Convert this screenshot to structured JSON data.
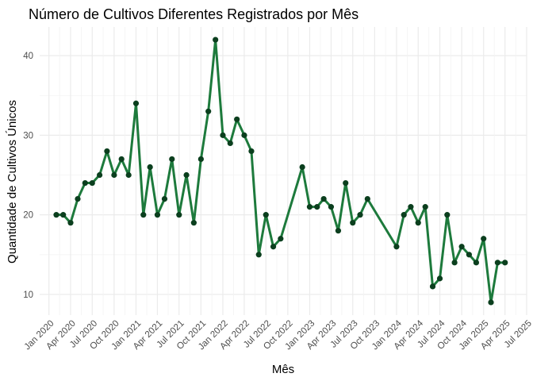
{
  "chart_data": {
    "type": "line",
    "title": "Número de Cultivos Diferentes Registrados por Mês",
    "xlabel": "Mês",
    "ylabel": "Quantidade de Cultivos Únicos",
    "x_axis": "date",
    "xlim": [
      "2019-11-23",
      "2025-07-01"
    ],
    "ylim": [
      7.4,
      43.6
    ],
    "grid": true,
    "legend": "none",
    "x_ticks": [
      {
        "date": "2020-01-01",
        "label": "Jan 2020"
      },
      {
        "date": "2020-04-01",
        "label": "Apr 2020"
      },
      {
        "date": "2020-07-01",
        "label": "Jul 2020"
      },
      {
        "date": "2020-10-01",
        "label": "Oct 2020"
      },
      {
        "date": "2021-01-01",
        "label": "Jan 2021"
      },
      {
        "date": "2021-04-01",
        "label": "Apr 2021"
      },
      {
        "date": "2021-07-01",
        "label": "Jul 2021"
      },
      {
        "date": "2021-10-01",
        "label": "Oct 2021"
      },
      {
        "date": "2022-01-01",
        "label": "Jan 2022"
      },
      {
        "date": "2022-04-01",
        "label": "Apr 2022"
      },
      {
        "date": "2022-07-01",
        "label": "Jul 2022"
      },
      {
        "date": "2022-10-01",
        "label": "Oct 2022"
      },
      {
        "date": "2023-01-01",
        "label": "Jan 2023"
      },
      {
        "date": "2023-04-01",
        "label": "Apr 2023"
      },
      {
        "date": "2023-07-01",
        "label": "Jul 2023"
      },
      {
        "date": "2023-10-01",
        "label": "Oct 2023"
      },
      {
        "date": "2024-01-01",
        "label": "Jan 2024"
      },
      {
        "date": "2024-04-01",
        "label": "Apr 2024"
      },
      {
        "date": "2024-07-01",
        "label": "Jul 2024"
      },
      {
        "date": "2024-10-01",
        "label": "Oct 2024"
      },
      {
        "date": "2025-01-01",
        "label": "Jan 2025"
      },
      {
        "date": "2025-04-01",
        "label": "Apr 2025"
      },
      {
        "date": "2025-07-01",
        "label": "Jul 2025"
      }
    ],
    "y_ticks": [
      10,
      20,
      30,
      40
    ],
    "colors": {
      "line": "#1d7a3c",
      "point": "#0b3f1e",
      "grid_major": "#ebebeb",
      "grid_minor": "#f3f3f3"
    },
    "series": [
      {
        "x": [
          "2020-02-01",
          "2020-03-01",
          "2020-04-01",
          "2020-05-01",
          "2020-06-01",
          "2020-07-01",
          "2020-08-01",
          "2020-09-01",
          "2020-10-01",
          "2020-11-01",
          "2020-12-01",
          "2021-01-01",
          "2021-02-01",
          "2021-03-01",
          "2021-04-01",
          "2021-05-01",
          "2021-06-01",
          "2021-07-01",
          "2021-08-01",
          "2021-09-01",
          "2021-10-01",
          "2021-11-01",
          "2021-12-01",
          "2022-01-01",
          "2022-02-01",
          "2022-03-01",
          "2022-04-01",
          "2022-05-01",
          "2022-06-01",
          "2022-07-01",
          "2022-08-01",
          "2022-09-01",
          "2022-12-01",
          "2023-01-01",
          "2023-02-01",
          "2023-03-01",
          "2023-04-01",
          "2023-05-01",
          "2023-06-01",
          "2023-07-01",
          "2023-08-01",
          "2023-09-01",
          "2024-01-01",
          "2024-02-01",
          "2024-03-01",
          "2024-04-01",
          "2024-05-01",
          "2024-06-01",
          "2024-07-01",
          "2024-08-01",
          "2024-09-01",
          "2024-10-01",
          "2024-11-01",
          "2024-12-01",
          "2025-01-01",
          "2025-02-01",
          "2025-03-01",
          "2025-04-01"
        ],
        "y": [
          20,
          20,
          19,
          22,
          24,
          24,
          25,
          28,
          25,
          27,
          25,
          34,
          20,
          26,
          20,
          22,
          27,
          20,
          25,
          19,
          27,
          33,
          42,
          30,
          29,
          32,
          30,
          28,
          15,
          20,
          16,
          17,
          26,
          21,
          21,
          22,
          21,
          18,
          24,
          19,
          20,
          22,
          16,
          20,
          21,
          19,
          21,
          11,
          12,
          20,
          14,
          16,
          15,
          14,
          17,
          9,
          14,
          14
        ]
      }
    ]
  }
}
